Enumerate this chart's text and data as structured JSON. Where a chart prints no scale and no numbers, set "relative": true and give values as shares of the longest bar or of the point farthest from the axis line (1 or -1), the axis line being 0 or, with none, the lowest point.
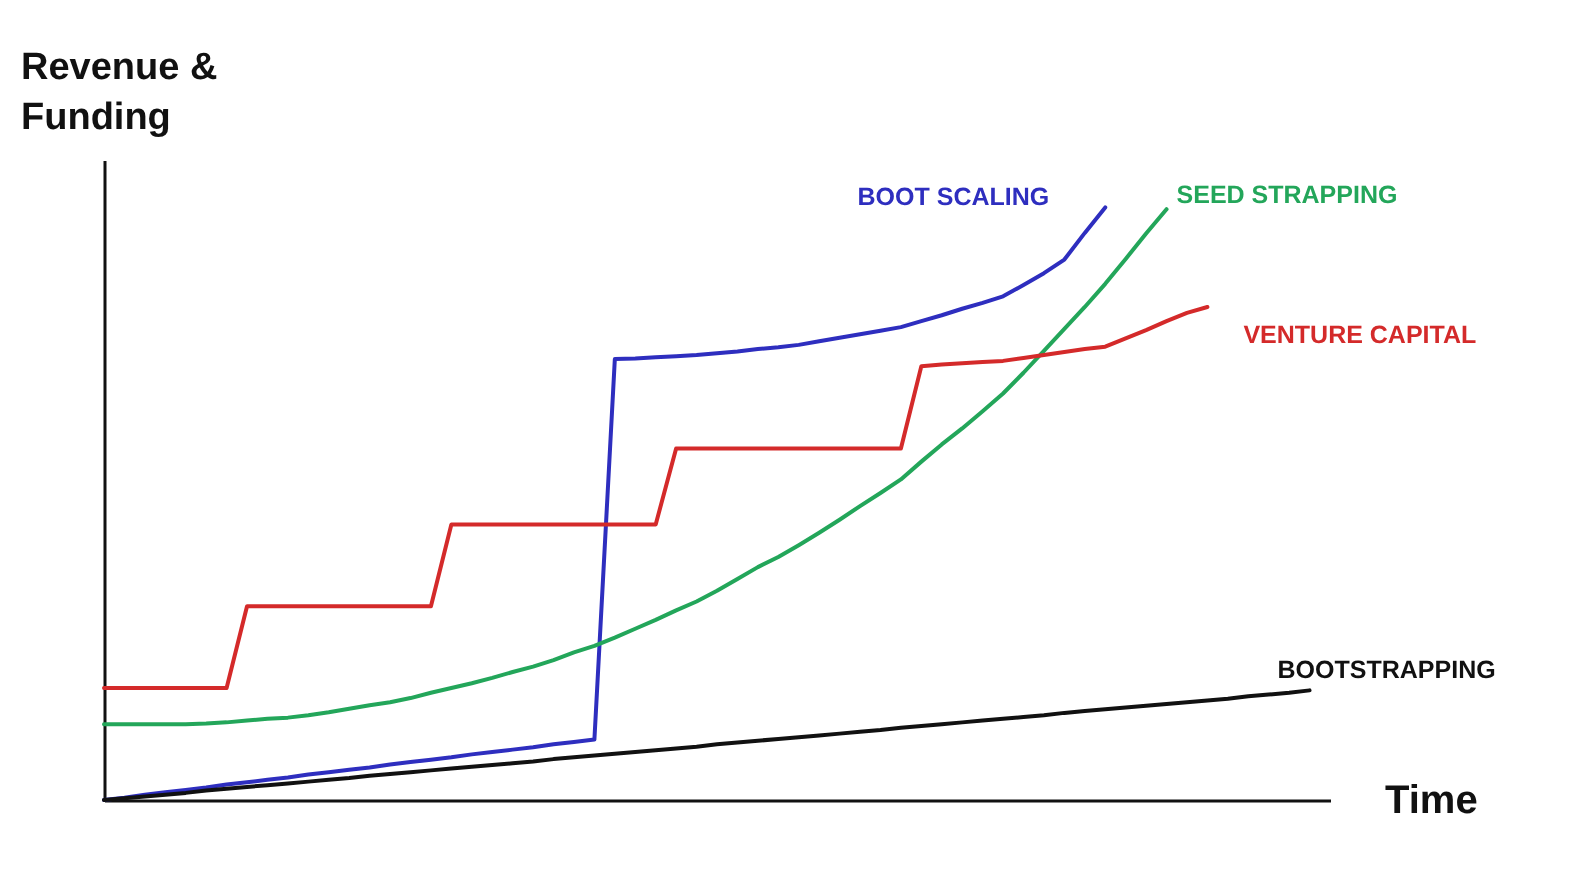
{
  "chart_data": {
    "type": "line",
    "relative": true,
    "xlabel": "Time",
    "ylabel": "Revenue & Funding",
    "line_style": "solid",
    "categories": [
      null,
      null,
      null,
      null,
      null,
      null,
      null,
      null,
      null,
      null,
      null,
      null,
      null,
      null,
      null,
      null,
      null,
      null,
      null,
      null,
      null,
      null,
      null,
      null,
      null,
      null,
      null,
      null,
      null,
      null,
      null,
      null,
      null,
      null,
      null,
      null,
      null,
      null,
      null,
      null,
      null,
      null,
      null,
      null,
      null,
      null,
      null,
      null,
      null,
      null,
      null,
      null,
      null,
      null,
      null,
      null,
      null,
      null,
      null,
      null,
      null
    ],
    "series": [
      {
        "name": "BOOT SCALING",
        "color": "#2e2ebf",
        "values": [
          0,
          0.004,
          0.009,
          0.013,
          0.017,
          0.021,
          0.026,
          0.03,
          0.034,
          0.038,
          0.043,
          0.047,
          0.051,
          0.055,
          0.06,
          0.064,
          0.068,
          0.072,
          0.077,
          0.081,
          0.085,
          0.089,
          0.094,
          0.098,
          0.102,
          0.744,
          0.745,
          0.747,
          0.749,
          0.751,
          0.754,
          0.757,
          0.761,
          0.764,
          0.768,
          0.774,
          0.78,
          0.786,
          0.792,
          0.798,
          0.808,
          0.818,
          0.829,
          0.839,
          0.85,
          0.869,
          0.889,
          0.912,
          0.957,
          1,
          null,
          null,
          null,
          null,
          null,
          null,
          null,
          null,
          null,
          null,
          null
        ]
      },
      {
        "name": "SEED STRAPPING",
        "color": "#23a65a",
        "values": [
          0.128,
          0.128,
          0.128,
          0.128,
          0.128,
          0.129,
          0.131,
          0.134,
          0.137,
          0.139,
          0.143,
          0.148,
          0.154,
          0.16,
          0.165,
          0.172,
          0.181,
          0.189,
          0.197,
          0.206,
          0.216,
          0.225,
          0.236,
          0.249,
          0.26,
          0.274,
          0.289,
          0.304,
          0.32,
          0.335,
          0.353,
          0.373,
          0.393,
          0.41,
          0.43,
          0.451,
          0.473,
          0.496,
          0.518,
          0.541,
          0.571,
          0.6,
          0.627,
          0.656,
          0.686,
          0.721,
          0.758,
          0.795,
          0.832,
          0.871,
          0.913,
          0.956,
          0.997,
          null,
          null,
          null,
          null,
          null,
          null,
          null,
          null
        ]
      },
      {
        "name": "VENTURE CAPITAL",
        "color": "#d42a2a",
        "values": [
          0.189,
          0.189,
          0.189,
          0.189,
          0.189,
          0.189,
          0.189,
          0.327,
          0.327,
          0.327,
          0.327,
          0.327,
          0.327,
          0.327,
          0.327,
          0.327,
          0.327,
          0.465,
          0.465,
          0.465,
          0.465,
          0.465,
          0.465,
          0.465,
          0.465,
          0.465,
          0.465,
          0.465,
          0.593,
          0.593,
          0.593,
          0.593,
          0.593,
          0.593,
          0.593,
          0.593,
          0.593,
          0.593,
          0.593,
          0.593,
          0.732,
          0.735,
          0.737,
          0.739,
          0.741,
          0.746,
          0.751,
          0.756,
          0.761,
          0.765,
          0.779,
          0.793,
          0.808,
          0.822,
          0.832,
          null,
          null,
          null,
          null,
          null,
          null
        ]
      },
      {
        "name": "BOOTSTRAPPING",
        "color": "#111111",
        "values": [
          0,
          0.003,
          0.006,
          0.009,
          0.012,
          0.016,
          0.019,
          0.022,
          0.025,
          0.028,
          0.031,
          0.034,
          0.037,
          0.041,
          0.044,
          0.047,
          0.05,
          0.053,
          0.056,
          0.059,
          0.062,
          0.065,
          0.069,
          0.072,
          0.075,
          0.078,
          0.081,
          0.084,
          0.087,
          0.09,
          0.094,
          0.097,
          0.1,
          0.103,
          0.106,
          0.109,
          0.112,
          0.115,
          0.118,
          0.122,
          0.125,
          0.128,
          0.131,
          0.134,
          0.137,
          0.14,
          0.143,
          0.147,
          0.15,
          0.153,
          0.156,
          0.159,
          0.162,
          0.165,
          0.168,
          0.171,
          0.175,
          0.178,
          0.181,
          0.185,
          null
        ]
      }
    ]
  }
}
